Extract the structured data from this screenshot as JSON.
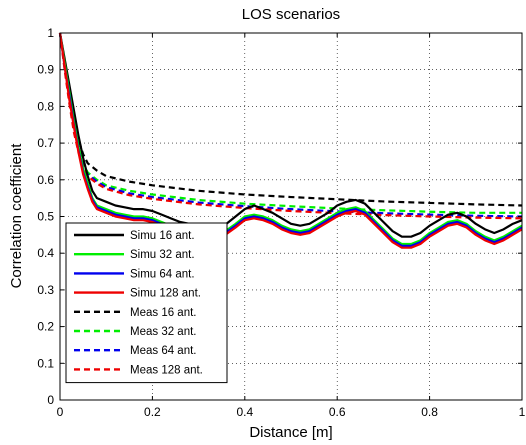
{
  "chart_data": {
    "type": "line",
    "title": "LOS scenarios",
    "xlabel": "Distance [m]",
    "ylabel": "Correlation coefficient",
    "xlim": [
      0,
      1
    ],
    "ylim": [
      0,
      1
    ],
    "xticks": [
      "0",
      "0.2",
      "0.4",
      "0.6",
      "0.8",
      "1"
    ],
    "yticks": [
      "0",
      "0.1",
      "0.2",
      "0.3",
      "0.4",
      "0.5",
      "0.6",
      "0.7",
      "0.8",
      "0.9",
      "1"
    ],
    "grid": true,
    "legend_position": "bottom-left",
    "series": [
      {
        "name": "Simu 16 ant.",
        "color": "#000000",
        "style": "solid",
        "points": [
          [
            0,
            1
          ],
          [
            0.01,
            0.93
          ],
          [
            0.02,
            0.86
          ],
          [
            0.03,
            0.79
          ],
          [
            0.04,
            0.72
          ],
          [
            0.05,
            0.66
          ],
          [
            0.06,
            0.61
          ],
          [
            0.07,
            0.57
          ],
          [
            0.08,
            0.55
          ],
          [
            0.1,
            0.54
          ],
          [
            0.12,
            0.53
          ],
          [
            0.14,
            0.525
          ],
          [
            0.16,
            0.52
          ],
          [
            0.18,
            0.52
          ],
          [
            0.2,
            0.515
          ],
          [
            0.22,
            0.505
          ],
          [
            0.24,
            0.495
          ],
          [
            0.26,
            0.485
          ],
          [
            0.28,
            0.48
          ],
          [
            0.3,
            0.475
          ],
          [
            0.32,
            0.47
          ],
          [
            0.34,
            0.47
          ],
          [
            0.36,
            0.48
          ],
          [
            0.38,
            0.5
          ],
          [
            0.4,
            0.52
          ],
          [
            0.42,
            0.53
          ],
          [
            0.44,
            0.52
          ],
          [
            0.46,
            0.51
          ],
          [
            0.48,
            0.495
          ],
          [
            0.5,
            0.48
          ],
          [
            0.52,
            0.475
          ],
          [
            0.54,
            0.48
          ],
          [
            0.56,
            0.495
          ],
          [
            0.58,
            0.51
          ],
          [
            0.6,
            0.53
          ],
          [
            0.62,
            0.54
          ],
          [
            0.64,
            0.545
          ],
          [
            0.66,
            0.535
          ],
          [
            0.68,
            0.51
          ],
          [
            0.7,
            0.485
          ],
          [
            0.72,
            0.46
          ],
          [
            0.74,
            0.445
          ],
          [
            0.76,
            0.445
          ],
          [
            0.78,
            0.455
          ],
          [
            0.8,
            0.475
          ],
          [
            0.82,
            0.49
          ],
          [
            0.84,
            0.505
          ],
          [
            0.86,
            0.51
          ],
          [
            0.88,
            0.5
          ],
          [
            0.9,
            0.48
          ],
          [
            0.92,
            0.465
          ],
          [
            0.94,
            0.455
          ],
          [
            0.96,
            0.465
          ],
          [
            0.98,
            0.48
          ],
          [
            1,
            0.49
          ]
        ]
      },
      {
        "name": "Simu 32 ant.",
        "color": "#00ee00",
        "style": "solid",
        "points": [
          [
            0,
            1
          ],
          [
            0.01,
            0.92
          ],
          [
            0.02,
            0.84
          ],
          [
            0.03,
            0.76
          ],
          [
            0.04,
            0.69
          ],
          [
            0.05,
            0.63
          ],
          [
            0.06,
            0.59
          ],
          [
            0.07,
            0.55
          ],
          [
            0.08,
            0.53
          ],
          [
            0.1,
            0.52
          ],
          [
            0.12,
            0.51
          ],
          [
            0.14,
            0.505
          ],
          [
            0.16,
            0.5
          ],
          [
            0.18,
            0.5
          ],
          [
            0.2,
            0.495
          ],
          [
            0.22,
            0.485
          ],
          [
            0.24,
            0.475
          ],
          [
            0.26,
            0.465
          ],
          [
            0.28,
            0.46
          ],
          [
            0.3,
            0.455
          ],
          [
            0.32,
            0.45
          ],
          [
            0.34,
            0.452
          ],
          [
            0.36,
            0.462
          ],
          [
            0.38,
            0.48
          ],
          [
            0.4,
            0.5
          ],
          [
            0.42,
            0.505
          ],
          [
            0.44,
            0.5
          ],
          [
            0.46,
            0.49
          ],
          [
            0.48,
            0.475
          ],
          [
            0.5,
            0.465
          ],
          [
            0.52,
            0.46
          ],
          [
            0.54,
            0.465
          ],
          [
            0.56,
            0.48
          ],
          [
            0.58,
            0.495
          ],
          [
            0.6,
            0.51
          ],
          [
            0.62,
            0.52
          ],
          [
            0.64,
            0.525
          ],
          [
            0.66,
            0.515
          ],
          [
            0.68,
            0.49
          ],
          [
            0.7,
            0.465
          ],
          [
            0.72,
            0.44
          ],
          [
            0.74,
            0.425
          ],
          [
            0.76,
            0.425
          ],
          [
            0.78,
            0.435
          ],
          [
            0.8,
            0.455
          ],
          [
            0.82,
            0.47
          ],
          [
            0.84,
            0.485
          ],
          [
            0.86,
            0.49
          ],
          [
            0.88,
            0.48
          ],
          [
            0.9,
            0.46
          ],
          [
            0.92,
            0.445
          ],
          [
            0.94,
            0.435
          ],
          [
            0.96,
            0.445
          ],
          [
            0.98,
            0.46
          ],
          [
            1,
            0.475
          ]
        ]
      },
      {
        "name": "Simu 64 ant.",
        "color": "#0000ee",
        "style": "solid",
        "points": [
          [
            0,
            1
          ],
          [
            0.01,
            0.91
          ],
          [
            0.02,
            0.83
          ],
          [
            0.03,
            0.75
          ],
          [
            0.04,
            0.68
          ],
          [
            0.05,
            0.62
          ],
          [
            0.06,
            0.58
          ],
          [
            0.07,
            0.545
          ],
          [
            0.08,
            0.525
          ],
          [
            0.1,
            0.515
          ],
          [
            0.12,
            0.505
          ],
          [
            0.14,
            0.5
          ],
          [
            0.16,
            0.495
          ],
          [
            0.18,
            0.495
          ],
          [
            0.2,
            0.49
          ],
          [
            0.22,
            0.48
          ],
          [
            0.24,
            0.47
          ],
          [
            0.26,
            0.46
          ],
          [
            0.28,
            0.455
          ],
          [
            0.3,
            0.45
          ],
          [
            0.32,
            0.445
          ],
          [
            0.34,
            0.447
          ],
          [
            0.36,
            0.457
          ],
          [
            0.38,
            0.475
          ],
          [
            0.4,
            0.495
          ],
          [
            0.42,
            0.5
          ],
          [
            0.44,
            0.495
          ],
          [
            0.46,
            0.485
          ],
          [
            0.48,
            0.47
          ],
          [
            0.5,
            0.46
          ],
          [
            0.52,
            0.455
          ],
          [
            0.54,
            0.46
          ],
          [
            0.56,
            0.475
          ],
          [
            0.58,
            0.49
          ],
          [
            0.6,
            0.505
          ],
          [
            0.62,
            0.515
          ],
          [
            0.64,
            0.52
          ],
          [
            0.66,
            0.51
          ],
          [
            0.68,
            0.485
          ],
          [
            0.7,
            0.46
          ],
          [
            0.72,
            0.435
          ],
          [
            0.74,
            0.42
          ],
          [
            0.76,
            0.42
          ],
          [
            0.78,
            0.43
          ],
          [
            0.8,
            0.45
          ],
          [
            0.82,
            0.465
          ],
          [
            0.84,
            0.48
          ],
          [
            0.86,
            0.485
          ],
          [
            0.88,
            0.475
          ],
          [
            0.9,
            0.455
          ],
          [
            0.92,
            0.44
          ],
          [
            0.94,
            0.43
          ],
          [
            0.96,
            0.44
          ],
          [
            0.98,
            0.455
          ],
          [
            1,
            0.47
          ]
        ]
      },
      {
        "name": "Simu 128 ant.",
        "color": "#ee0000",
        "style": "solid",
        "points": [
          [
            0,
            1
          ],
          [
            0.01,
            0.91
          ],
          [
            0.02,
            0.82
          ],
          [
            0.03,
            0.745
          ],
          [
            0.04,
            0.675
          ],
          [
            0.05,
            0.615
          ],
          [
            0.06,
            0.575
          ],
          [
            0.07,
            0.54
          ],
          [
            0.08,
            0.52
          ],
          [
            0.1,
            0.51
          ],
          [
            0.12,
            0.5
          ],
          [
            0.14,
            0.495
          ],
          [
            0.16,
            0.49
          ],
          [
            0.18,
            0.49
          ],
          [
            0.2,
            0.485
          ],
          [
            0.22,
            0.475
          ],
          [
            0.24,
            0.465
          ],
          [
            0.26,
            0.455
          ],
          [
            0.28,
            0.45
          ],
          [
            0.3,
            0.445
          ],
          [
            0.32,
            0.44
          ],
          [
            0.34,
            0.442
          ],
          [
            0.36,
            0.452
          ],
          [
            0.38,
            0.47
          ],
          [
            0.4,
            0.49
          ],
          [
            0.42,
            0.495
          ],
          [
            0.44,
            0.49
          ],
          [
            0.46,
            0.48
          ],
          [
            0.48,
            0.465
          ],
          [
            0.5,
            0.455
          ],
          [
            0.52,
            0.45
          ],
          [
            0.54,
            0.455
          ],
          [
            0.56,
            0.47
          ],
          [
            0.58,
            0.485
          ],
          [
            0.6,
            0.5
          ],
          [
            0.62,
            0.51
          ],
          [
            0.64,
            0.515
          ],
          [
            0.66,
            0.505
          ],
          [
            0.68,
            0.48
          ],
          [
            0.7,
            0.455
          ],
          [
            0.72,
            0.43
          ],
          [
            0.74,
            0.415
          ],
          [
            0.76,
            0.415
          ],
          [
            0.78,
            0.425
          ],
          [
            0.8,
            0.445
          ],
          [
            0.82,
            0.46
          ],
          [
            0.84,
            0.475
          ],
          [
            0.86,
            0.48
          ],
          [
            0.88,
            0.47
          ],
          [
            0.9,
            0.45
          ],
          [
            0.92,
            0.435
          ],
          [
            0.94,
            0.425
          ],
          [
            0.96,
            0.435
          ],
          [
            0.98,
            0.45
          ],
          [
            1,
            0.465
          ]
        ]
      },
      {
        "name": "Meas 16 ant.",
        "color": "#000000",
        "style": "dashed",
        "points": [
          [
            0,
            1
          ],
          [
            0.01,
            0.92
          ],
          [
            0.02,
            0.83
          ],
          [
            0.03,
            0.76
          ],
          [
            0.04,
            0.71
          ],
          [
            0.05,
            0.67
          ],
          [
            0.06,
            0.645
          ],
          [
            0.08,
            0.625
          ],
          [
            0.1,
            0.61
          ],
          [
            0.15,
            0.595
          ],
          [
            0.2,
            0.585
          ],
          [
            0.3,
            0.57
          ],
          [
            0.4,
            0.56
          ],
          [
            0.5,
            0.553
          ],
          [
            0.6,
            0.547
          ],
          [
            0.7,
            0.541
          ],
          [
            0.8,
            0.537
          ],
          [
            0.9,
            0.533
          ],
          [
            1,
            0.53
          ]
        ]
      },
      {
        "name": "Meas 32 ant.",
        "color": "#00ee00",
        "style": "dashed",
        "points": [
          [
            0,
            1
          ],
          [
            0.01,
            0.91
          ],
          [
            0.02,
            0.82
          ],
          [
            0.03,
            0.74
          ],
          [
            0.04,
            0.685
          ],
          [
            0.05,
            0.645
          ],
          [
            0.06,
            0.62
          ],
          [
            0.08,
            0.6
          ],
          [
            0.1,
            0.585
          ],
          [
            0.15,
            0.57
          ],
          [
            0.2,
            0.56
          ],
          [
            0.3,
            0.545
          ],
          [
            0.4,
            0.535
          ],
          [
            0.5,
            0.528
          ],
          [
            0.6,
            0.522
          ],
          [
            0.7,
            0.517
          ],
          [
            0.8,
            0.513
          ],
          [
            0.9,
            0.51
          ],
          [
            1,
            0.51
          ]
        ]
      },
      {
        "name": "Meas 64 ant.",
        "color": "#0000ee",
        "style": "dashed",
        "points": [
          [
            0,
            1
          ],
          [
            0.01,
            0.905
          ],
          [
            0.02,
            0.815
          ],
          [
            0.03,
            0.735
          ],
          [
            0.04,
            0.68
          ],
          [
            0.05,
            0.64
          ],
          [
            0.06,
            0.615
          ],
          [
            0.08,
            0.595
          ],
          [
            0.1,
            0.58
          ],
          [
            0.15,
            0.563
          ],
          [
            0.2,
            0.553
          ],
          [
            0.3,
            0.538
          ],
          [
            0.4,
            0.528
          ],
          [
            0.5,
            0.52
          ],
          [
            0.6,
            0.514
          ],
          [
            0.7,
            0.509
          ],
          [
            0.8,
            0.505
          ],
          [
            0.9,
            0.502
          ],
          [
            1,
            0.5
          ]
        ]
      },
      {
        "name": "Meas 128 ant.",
        "color": "#ee0000",
        "style": "dashed",
        "points": [
          [
            0,
            1
          ],
          [
            0.01,
            0.9
          ],
          [
            0.02,
            0.81
          ],
          [
            0.03,
            0.73
          ],
          [
            0.04,
            0.675
          ],
          [
            0.05,
            0.635
          ],
          [
            0.06,
            0.61
          ],
          [
            0.08,
            0.59
          ],
          [
            0.1,
            0.575
          ],
          [
            0.15,
            0.558
          ],
          [
            0.2,
            0.548
          ],
          [
            0.3,
            0.533
          ],
          [
            0.4,
            0.523
          ],
          [
            0.5,
            0.515
          ],
          [
            0.6,
            0.509
          ],
          [
            0.7,
            0.504
          ],
          [
            0.8,
            0.5
          ],
          [
            0.9,
            0.497
          ],
          [
            1,
            0.495
          ]
        ]
      }
    ]
  }
}
